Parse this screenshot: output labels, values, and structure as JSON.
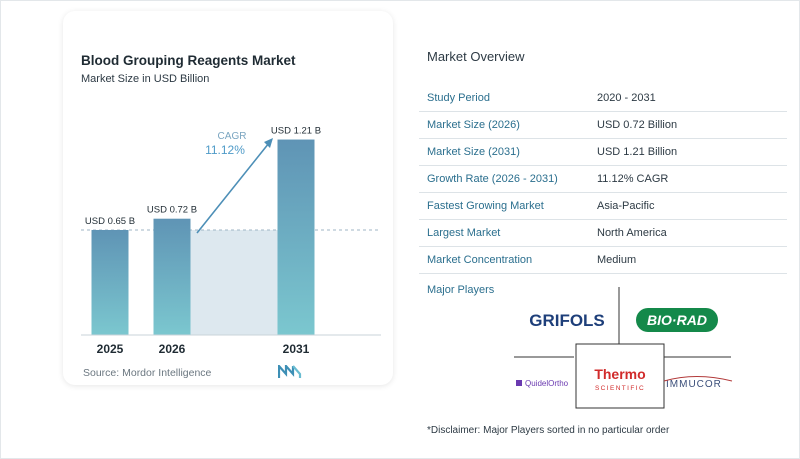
{
  "chart_data": {
    "type": "bar",
    "title": "Blood Grouping Reagents Market",
    "subtitle": "Market Size in USD Billion",
    "categories": [
      "2025",
      "2026",
      "2031"
    ],
    "values": [
      0.65,
      0.72,
      1.21
    ],
    "value_labels": [
      "USD 0.65 B",
      "USD 0.72 B",
      "USD 1.21 B"
    ],
    "ylim": [
      0,
      1.3
    ],
    "cagr_label": "CAGR",
    "cagr_value": "11.12%",
    "source": "Source: Mordor Intelligence",
    "colors": {
      "bar_top": "#5f94b5",
      "bar_bottom": "#7bc7cf",
      "band": "#dde8ef",
      "arrow": "#4d8fb7",
      "accent": "#4f9bc8"
    }
  },
  "overview": {
    "title": "Market Overview",
    "rows": [
      {
        "label": "Study Period",
        "value": "2020 - 2031"
      },
      {
        "label": "Market Size (2026)",
        "value": "USD 0.72 Billion"
      },
      {
        "label": "Market Size (2031)",
        "value": "USD 1.21 Billion"
      },
      {
        "label": "Growth Rate (2026 - 2031)",
        "value": "11.12% CAGR"
      },
      {
        "label": "Fastest Growing Market",
        "value": "Asia-Pacific"
      },
      {
        "label": "Largest Market",
        "value": "North America"
      },
      {
        "label": "Market Concentration",
        "value": "Medium"
      }
    ],
    "players_title": "Major Players",
    "disclaimer": "*Disclaimer: Major Players sorted in no particular order"
  },
  "players": [
    "GRIFOLS",
    "BIO·RAD",
    "Thermo",
    "SCIENTIFIC",
    "QuidelOrtho",
    "IMMUCOR"
  ]
}
